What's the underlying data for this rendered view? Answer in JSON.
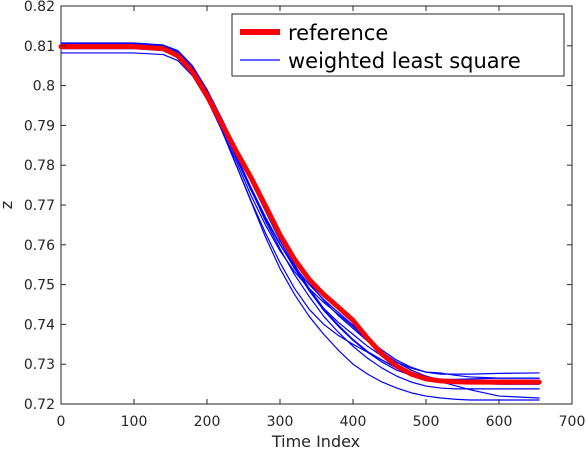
{
  "chart_data": {
    "type": "line",
    "xlabel": "Time Index",
    "ylabel": "z",
    "xlim": [
      0,
      700
    ],
    "ylim": [
      0.72,
      0.82
    ],
    "xticks": [
      0,
      100,
      200,
      300,
      400,
      500,
      600,
      700
    ],
    "xtick_labels": [
      "0",
      "100",
      "200",
      "300",
      "400",
      "500",
      "600",
      "700"
    ],
    "yticks": [
      0.72,
      0.73,
      0.74,
      0.75,
      0.76,
      0.77,
      0.78,
      0.79,
      0.8,
      0.81,
      0.82
    ],
    "ytick_labels": [
      "0.72",
      "0.73",
      "0.74",
      "0.75",
      "0.76",
      "0.77",
      "0.78",
      "0.79",
      "0.8",
      "0.81",
      "0.82"
    ],
    "grid": false,
    "legend": {
      "position": "top-right",
      "entries": [
        {
          "label": "reference",
          "color": "#ff0000"
        },
        {
          "label": "weighted least square",
          "color": "#0000ff"
        }
      ]
    },
    "series": [
      {
        "name": "reference",
        "color": "#ff0000",
        "width": "thick",
        "x": [
          0,
          100,
          140,
          160,
          180,
          200,
          220,
          240,
          260,
          280,
          300,
          320,
          340,
          360,
          380,
          400,
          420,
          440,
          460,
          480,
          500,
          520,
          540,
          560,
          600,
          655
        ],
        "y": [
          0.8098,
          0.8098,
          0.8093,
          0.8075,
          0.8035,
          0.7975,
          0.7905,
          0.7835,
          0.777,
          0.7698,
          0.7625,
          0.7563,
          0.7513,
          0.7475,
          0.7443,
          0.741,
          0.7365,
          0.7325,
          0.7295,
          0.7275,
          0.7263,
          0.7258,
          0.7256,
          0.7255,
          0.7255,
          0.7255
        ]
      },
      {
        "color": "#0000ff",
        "x": [
          0,
          100,
          140,
          160,
          180,
          200,
          220,
          240,
          260,
          280,
          300,
          320,
          340,
          360,
          380,
          400,
          420,
          440,
          460,
          480,
          500,
          520,
          540,
          560,
          600,
          655
        ],
        "y": [
          0.8082,
          0.8082,
          0.8078,
          0.8063,
          0.8025,
          0.7965,
          0.789,
          0.781,
          0.7725,
          0.765,
          0.7585,
          0.7532,
          0.749,
          0.7455,
          0.7425,
          0.7395,
          0.736,
          0.733,
          0.7305,
          0.7285,
          0.727,
          0.726,
          0.7255,
          0.7252,
          0.725,
          0.725
        ]
      },
      {
        "color": "#0000ff",
        "x": [
          0,
          100,
          140,
          160,
          180,
          200,
          220,
          240,
          260,
          280,
          300,
          320,
          340,
          360,
          380,
          400,
          420,
          440,
          460,
          480,
          500,
          520,
          540,
          560,
          600,
          655
        ],
        "y": [
          0.8105,
          0.8105,
          0.81,
          0.8085,
          0.8045,
          0.7985,
          0.7915,
          0.784,
          0.777,
          0.7695,
          0.762,
          0.755,
          0.749,
          0.744,
          0.7405,
          0.7375,
          0.7345,
          0.732,
          0.7295,
          0.728,
          0.7268,
          0.7262,
          0.726,
          0.726,
          0.726,
          0.726
        ]
      },
      {
        "color": "#0000ff",
        "x": [
          0,
          100,
          140,
          160,
          180,
          200,
          220,
          240,
          260,
          280,
          300,
          320,
          340,
          360,
          380,
          400,
          420,
          440,
          460,
          480,
          500,
          520,
          540,
          560,
          600,
          655
        ],
        "y": [
          0.81,
          0.81,
          0.8095,
          0.808,
          0.8038,
          0.7975,
          0.79,
          0.782,
          0.774,
          0.766,
          0.759,
          0.7525,
          0.747,
          0.742,
          0.738,
          0.7345,
          0.7315,
          0.729,
          0.727,
          0.7255,
          0.7245,
          0.724,
          0.7238,
          0.7238,
          0.7238,
          0.7238
        ]
      },
      {
        "color": "#0000ff",
        "x": [
          0,
          100,
          140,
          160,
          180,
          200,
          220,
          240,
          260,
          280,
          300,
          320,
          340,
          360,
          380,
          400,
          420,
          440,
          460,
          480,
          500,
          520,
          540,
          560,
          600,
          655
        ],
        "y": [
          0.8095,
          0.8095,
          0.809,
          0.8072,
          0.8032,
          0.797,
          0.789,
          0.78,
          0.771,
          0.762,
          0.754,
          0.7475,
          0.742,
          0.7375,
          0.7335,
          0.73,
          0.7275,
          0.7255,
          0.724,
          0.7228,
          0.722,
          0.7215,
          0.7212,
          0.721,
          0.721,
          0.721
        ]
      },
      {
        "color": "#0000ff",
        "x": [
          0,
          100,
          140,
          160,
          180,
          200,
          220,
          240,
          260,
          280,
          300,
          320,
          340,
          360,
          380,
          400,
          420,
          440,
          460,
          480,
          500,
          520,
          540,
          560,
          600,
          655
        ],
        "y": [
          0.8102,
          0.8102,
          0.8098,
          0.8083,
          0.8043,
          0.7982,
          0.791,
          0.7835,
          0.776,
          0.7685,
          0.761,
          0.7545,
          0.7485,
          0.7435,
          0.7395,
          0.736,
          0.733,
          0.7305,
          0.7285,
          0.7272,
          0.7265,
          0.7262,
          0.7262,
          0.7263,
          0.7265,
          0.7265
        ]
      },
      {
        "color": "#0000ff",
        "x": [
          0,
          100,
          140,
          160,
          180,
          200,
          220,
          240,
          260,
          280,
          300,
          320,
          340,
          360,
          380,
          400,
          420,
          440,
          460,
          480,
          500,
          520,
          540,
          560,
          600,
          655
        ],
        "y": [
          0.8098,
          0.8098,
          0.8093,
          0.8077,
          0.8036,
          0.7974,
          0.7898,
          0.7818,
          0.7738,
          0.7665,
          0.76,
          0.7545,
          0.75,
          0.7462,
          0.743,
          0.7398,
          0.7365,
          0.7335,
          0.731,
          0.7292,
          0.728,
          0.7275,
          0.7275,
          0.7275,
          0.7277,
          0.7278
        ]
      },
      {
        "color": "#0000ff",
        "x": [
          0,
          100,
          140,
          160,
          180,
          200,
          220,
          240,
          260,
          280,
          300,
          320,
          340,
          360,
          380,
          400,
          420,
          440,
          460,
          480,
          500,
          520,
          540,
          560,
          600,
          655
        ],
        "y": [
          0.8107,
          0.8107,
          0.8102,
          0.8088,
          0.805,
          0.799,
          0.7918,
          0.7842,
          0.7765,
          0.769,
          0.762,
          0.7558,
          0.7505,
          0.746,
          0.7422,
          0.739,
          0.7358,
          0.733,
          0.7305,
          0.729,
          0.728,
          0.7278,
          0.7272,
          0.7268,
          0.7265,
          0.7265
        ]
      },
      {
        "color": "#0000ff",
        "x": [
          0,
          100,
          140,
          160,
          180,
          200,
          220,
          240,
          260,
          280,
          300,
          320,
          340,
          360,
          380,
          400,
          420,
          440,
          460,
          480,
          500,
          520,
          540,
          560,
          600,
          655
        ],
        "y": [
          0.8093,
          0.8093,
          0.8088,
          0.8072,
          0.8032,
          0.7968,
          0.7888,
          0.78,
          0.7712,
          0.763,
          0.7555,
          0.749,
          0.7438,
          0.74,
          0.7372,
          0.735,
          0.733,
          0.731,
          0.729,
          0.7275,
          0.7262,
          0.7258,
          0.7255,
          0.7252,
          0.725,
          0.725
        ]
      },
      {
        "color": "#0000ff",
        "x": [
          0,
          100,
          140,
          160,
          180,
          200,
          220,
          240,
          260,
          280,
          300,
          320,
          340,
          360,
          380,
          400,
          420,
          440,
          460,
          480,
          500,
          520,
          540,
          560,
          600,
          655
        ],
        "y": [
          0.81,
          0.81,
          0.8096,
          0.8081,
          0.8042,
          0.798,
          0.7905,
          0.7825,
          0.7745,
          0.767,
          0.7602,
          0.754,
          0.7485,
          0.7438,
          0.7398,
          0.7362,
          0.7332,
          0.731,
          0.7292,
          0.7278,
          0.7266,
          0.7256,
          0.7246,
          0.7236,
          0.722,
          0.7215
        ]
      }
    ]
  }
}
